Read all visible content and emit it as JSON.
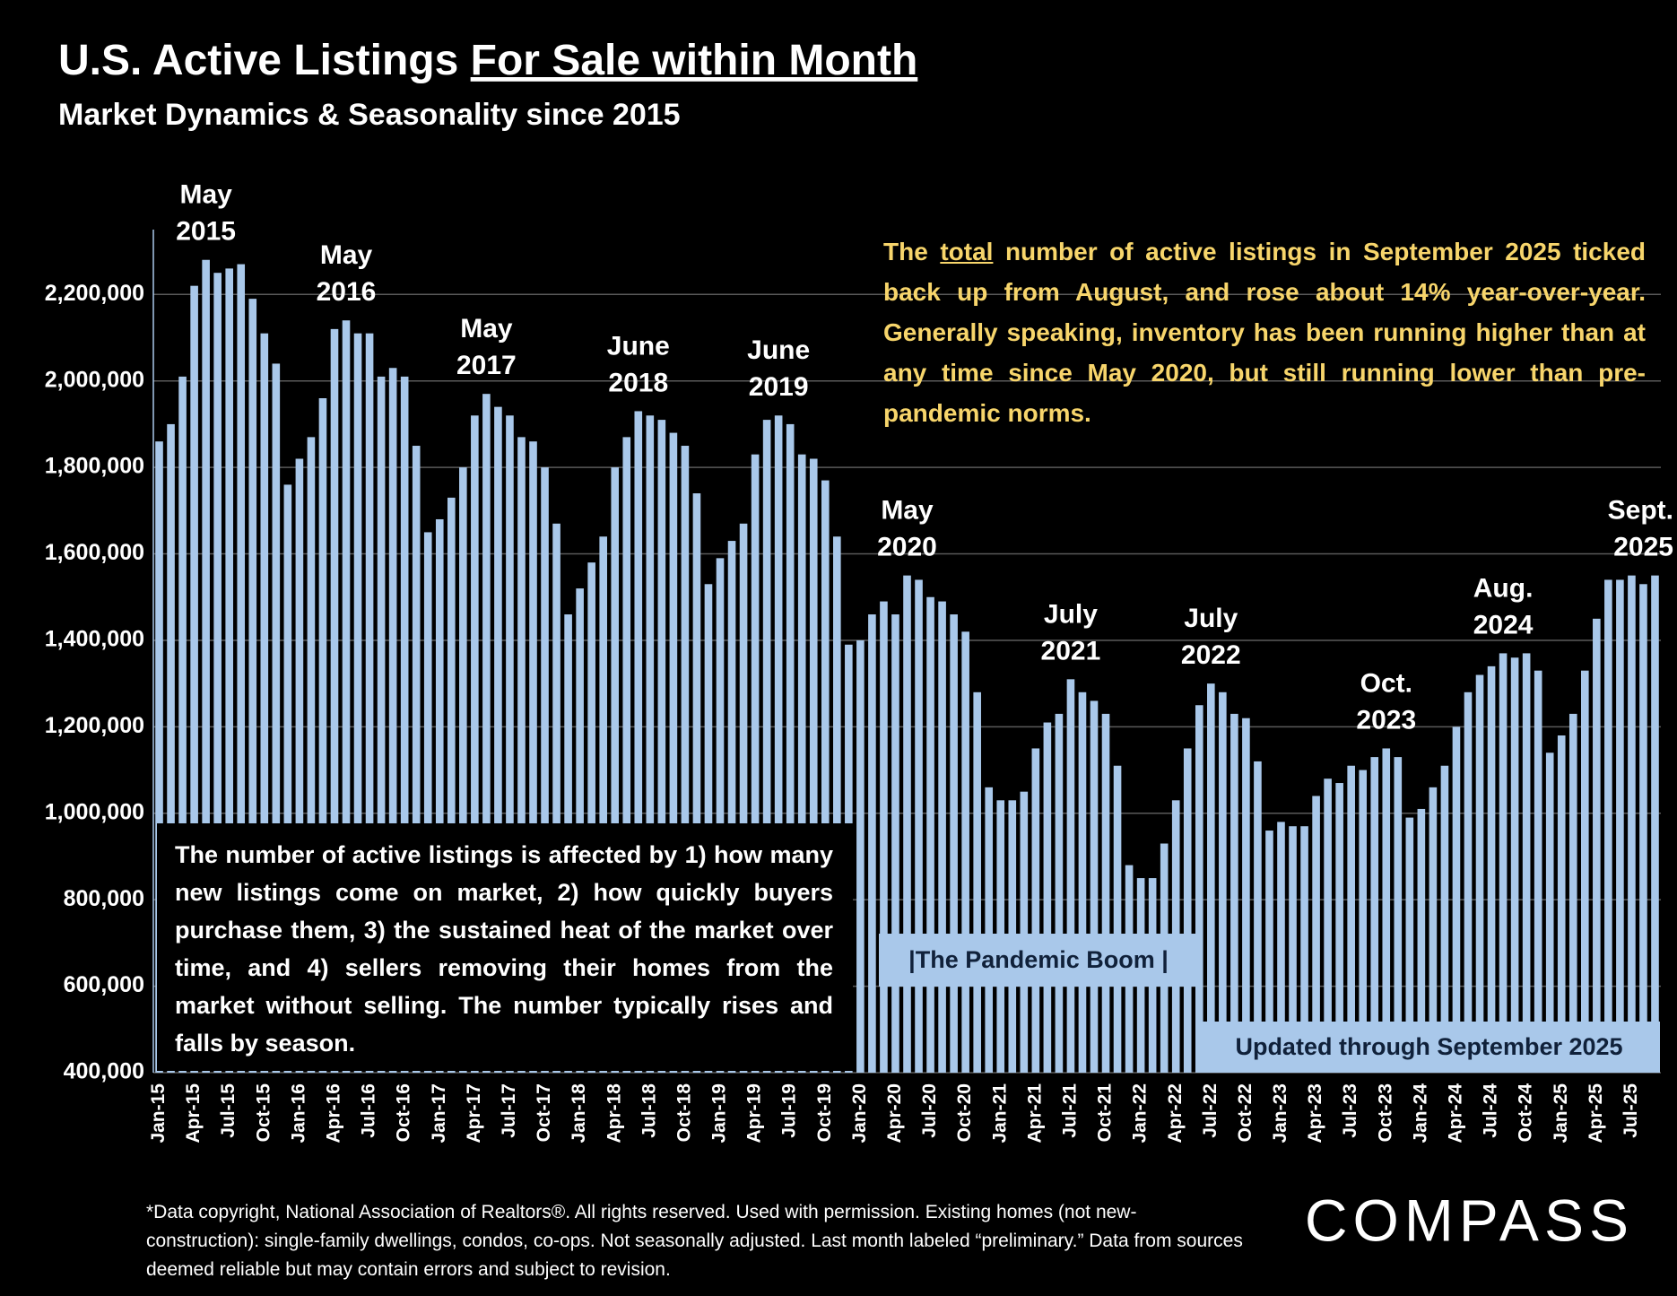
{
  "chart_data": {
    "type": "bar",
    "title_parts": [
      "U.S. Active Listings ",
      "For Sale within Month"
    ],
    "subtitle": "Market Dynamics & Seasonality since 2015",
    "categories": [
      "Jan-15",
      null,
      null,
      "Apr-15",
      null,
      null,
      "Jul-15",
      null,
      null,
      "Oct-15",
      null,
      null,
      "Jan-16",
      null,
      null,
      "Apr-16",
      null,
      null,
      "Jul-16",
      null,
      null,
      "Oct-16",
      null,
      null,
      "Jan-17",
      null,
      null,
      "Apr-17",
      null,
      null,
      "Jul-17",
      null,
      null,
      "Oct-17",
      null,
      null,
      "Jan-18",
      null,
      null,
      "Apr-18",
      null,
      null,
      "Jul-18",
      null,
      null,
      "Oct-18",
      null,
      null,
      "Jan-19",
      null,
      null,
      "Apr-19",
      null,
      null,
      "Jul-19",
      null,
      null,
      "Oct-19",
      null,
      null,
      "Jan-20",
      null,
      null,
      "Apr-20",
      null,
      null,
      "Jul-20",
      null,
      null,
      "Oct-20",
      null,
      null,
      "Jan-21",
      null,
      null,
      "Apr-21",
      null,
      null,
      "Jul-21",
      null,
      null,
      "Oct-21",
      null,
      null,
      "Jan-22",
      null,
      null,
      "Apr-22",
      null,
      null,
      "Jul-22",
      null,
      null,
      "Oct-22",
      null,
      null,
      "Jan-23",
      null,
      null,
      "Apr-23",
      null,
      null,
      "Jul-23",
      null,
      null,
      "Oct-23",
      null,
      null,
      "Jan-24",
      null,
      null,
      "Apr-24",
      null,
      null,
      "Jul-24",
      null,
      null,
      "Oct-24",
      null,
      null,
      "Jan-25",
      null,
      null,
      "Apr-25",
      null,
      null,
      "Jul-25",
      null,
      null
    ],
    "values": [
      1860000,
      1900000,
      2010000,
      2220000,
      2280000,
      2250000,
      2260000,
      2270000,
      2190000,
      2110000,
      2040000,
      1760000,
      1820000,
      1870000,
      1960000,
      2120000,
      2140000,
      2110000,
      2110000,
      2010000,
      2030000,
      2010000,
      1850000,
      1650000,
      1680000,
      1730000,
      1800000,
      1920000,
      1970000,
      1940000,
      1920000,
      1870000,
      1860000,
      1800000,
      1670000,
      1460000,
      1520000,
      1580000,
      1640000,
      1800000,
      1870000,
      1930000,
      1920000,
      1910000,
      1880000,
      1850000,
      1740000,
      1530000,
      1590000,
      1630000,
      1670000,
      1830000,
      1910000,
      1920000,
      1900000,
      1830000,
      1820000,
      1770000,
      1640000,
      1390000,
      1400000,
      1460000,
      1490000,
      1460000,
      1550000,
      1540000,
      1500000,
      1490000,
      1460000,
      1420000,
      1280000,
      1060000,
      1030000,
      1030000,
      1050000,
      1150000,
      1210000,
      1230000,
      1310000,
      1280000,
      1260000,
      1230000,
      1110000,
      880000,
      850000,
      850000,
      930000,
      1030000,
      1150000,
      1250000,
      1300000,
      1280000,
      1230000,
      1220000,
      1120000,
      960000,
      980000,
      970000,
      970000,
      1040000,
      1080000,
      1070000,
      1110000,
      1100000,
      1130000,
      1150000,
      1130000,
      990000,
      1010000,
      1060000,
      1110000,
      1200000,
      1280000,
      1320000,
      1340000,
      1370000,
      1360000,
      1370000,
      1330000,
      1140000,
      1180000,
      1230000,
      1330000,
      1450000,
      1540000,
      1540000,
      1550000,
      1530000,
      1550000
    ],
    "color": "#a9c8ea",
    "ylim": [
      400000,
      2350000
    ],
    "yticks": [
      {
        "value": 400000,
        "label": "400,000"
      },
      {
        "value": 600000,
        "label": "600,000"
      },
      {
        "value": 800000,
        "label": "800,000"
      },
      {
        "value": 1000000,
        "label": "1,000,000"
      },
      {
        "value": 1200000,
        "label": "1,200,000"
      },
      {
        "value": 1400000,
        "label": "1,400,000"
      },
      {
        "value": 1600000,
        "label": "1,600,000"
      },
      {
        "value": 1800000,
        "label": "1,800,000"
      },
      {
        "value": 2000000,
        "label": "2,000,000"
      },
      {
        "value": 2200000,
        "label": "2,200,000"
      }
    ],
    "grid": true,
    "annotations": [
      [
        "May",
        "2015"
      ],
      [
        "May",
        "2016"
      ],
      [
        "May",
        "2017"
      ],
      [
        "June",
        "2018"
      ],
      [
        "June",
        "2019"
      ],
      [
        "May",
        "2020"
      ],
      [
        "July",
        "2021"
      ],
      [
        "July",
        "2022"
      ],
      [
        "Oct.",
        "2023"
      ],
      [
        "Aug.",
        "2024"
      ],
      [
        "Sept.",
        "2025"
      ]
    ],
    "summary_parts": [
      "The ",
      "total",
      " number of active listings in September 2025 ticked back up from August, and rose about 14% year-over-year. Generally speaking, inventory has been running higher than at any time since May 2020, but still running lower than pre-pandemic norms."
    ],
    "explainer": "The number of active listings is affected by 1) how many new listings come on market, 2) how quickly buyers purchase them, 3) the sustained heat of the market over time, and 4) sellers removing their homes from the market without selling. The number typically rises and falls by season.",
    "pandemic_label": "|The Pandemic Boom |",
    "updated_label": "Updated through September 2025",
    "footnote": "*Data copyright, National Association of Realtors®. All rights reserved. Used with permission. Existing homes (not new-construction): single-family dwellings, condos, co-ops. Not seasonally adjusted. Last month labeled “preliminary.” Data from sources deemed reliable but may contain errors and subject to revision.",
    "logo": "COMPASS"
  }
}
